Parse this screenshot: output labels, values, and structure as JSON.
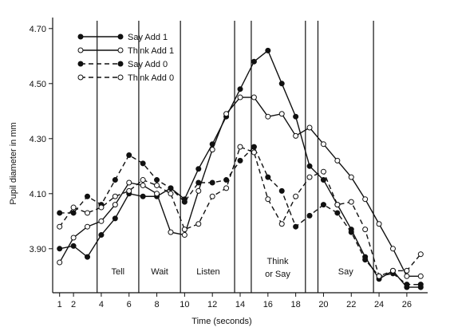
{
  "chart_data": {
    "type": "line",
    "title": "",
    "xlabel": "Time (seconds)",
    "ylabel": "Pupil diameter in mm",
    "xlim": [
      0.5,
      27.5
    ],
    "ylim": [
      3.74,
      4.74
    ],
    "x_ticks": [
      1,
      2,
      4,
      6,
      8,
      10,
      12,
      14,
      16,
      18,
      20,
      22,
      24,
      26
    ],
    "y_ticks": [
      {
        "value": 3.9,
        "label": "3.90"
      },
      {
        "value": 4.1,
        "label": "4.10"
      },
      {
        "value": 4.3,
        "label": "4.30"
      },
      {
        "value": 4.5,
        "label": "4.50"
      },
      {
        "value": 4.7,
        "label": "4.70"
      }
    ],
    "x": [
      1,
      2,
      3,
      4,
      5,
      6,
      7,
      8,
      9,
      10,
      11,
      12,
      13,
      14,
      15,
      16,
      17,
      18,
      19,
      20,
      21,
      22,
      23,
      24,
      25,
      26,
      27
    ],
    "series": [
      {
        "name": "Say Add 1",
        "line": "solid",
        "marker": "filled",
        "values": [
          3.9,
          3.91,
          3.87,
          3.95,
          4.01,
          4.1,
          4.09,
          4.09,
          4.12,
          4.08,
          4.19,
          4.28,
          4.38,
          4.48,
          4.58,
          4.62,
          4.5,
          4.38,
          4.2,
          4.15,
          4.06,
          3.97,
          3.87,
          3.79,
          3.82,
          3.76,
          3.76
        ]
      },
      {
        "name": "Think Add 1",
        "line": "solid",
        "marker": "open",
        "values": [
          3.85,
          3.94,
          3.98,
          4.0,
          4.06,
          4.14,
          4.13,
          4.1,
          3.96,
          3.95,
          4.11,
          4.26,
          4.39,
          4.45,
          4.45,
          4.38,
          4.39,
          4.31,
          4.34,
          4.28,
          4.22,
          4.16,
          4.08,
          3.99,
          3.9,
          3.8,
          3.8
        ]
      },
      {
        "name": "Say Add 0",
        "line": "dashed",
        "marker": "filled",
        "values": [
          4.03,
          4.03,
          4.09,
          4.06,
          4.15,
          4.24,
          4.21,
          4.15,
          4.12,
          4.07,
          4.14,
          4.14,
          4.15,
          4.22,
          4.27,
          4.16,
          4.11,
          3.98,
          4.02,
          4.06,
          4.03,
          3.96,
          3.86,
          3.8,
          3.81,
          3.77,
          3.77
        ]
      },
      {
        "name": "Think Add 0",
        "line": "dashed",
        "marker": "open",
        "values": [
          3.98,
          4.05,
          4.03,
          4.05,
          4.09,
          4.11,
          4.15,
          4.13,
          4.1,
          3.97,
          3.99,
          4.09,
          4.12,
          4.27,
          4.25,
          4.08,
          3.99,
          4.09,
          4.16,
          4.18,
          4.06,
          4.07,
          3.97,
          3.8,
          3.82,
          3.82,
          3.88
        ]
      }
    ],
    "event_markers": [
      3.7,
      6.7,
      9.7,
      13.6,
      14.8,
      18.7,
      19.6,
      23.6
    ],
    "phase_labels": [
      {
        "text": "Tell",
        "x": 5.2
      },
      {
        "text": "Wait",
        "x": 8.2
      },
      {
        "text": "Listen",
        "x": 11.7
      },
      {
        "text": "Think",
        "x": 16.7
      },
      {
        "text": "or Say",
        "x": 16.7
      },
      {
        "text": "Say",
        "x": 21.6
      }
    ],
    "legend_position": "top-left",
    "grid": false
  }
}
